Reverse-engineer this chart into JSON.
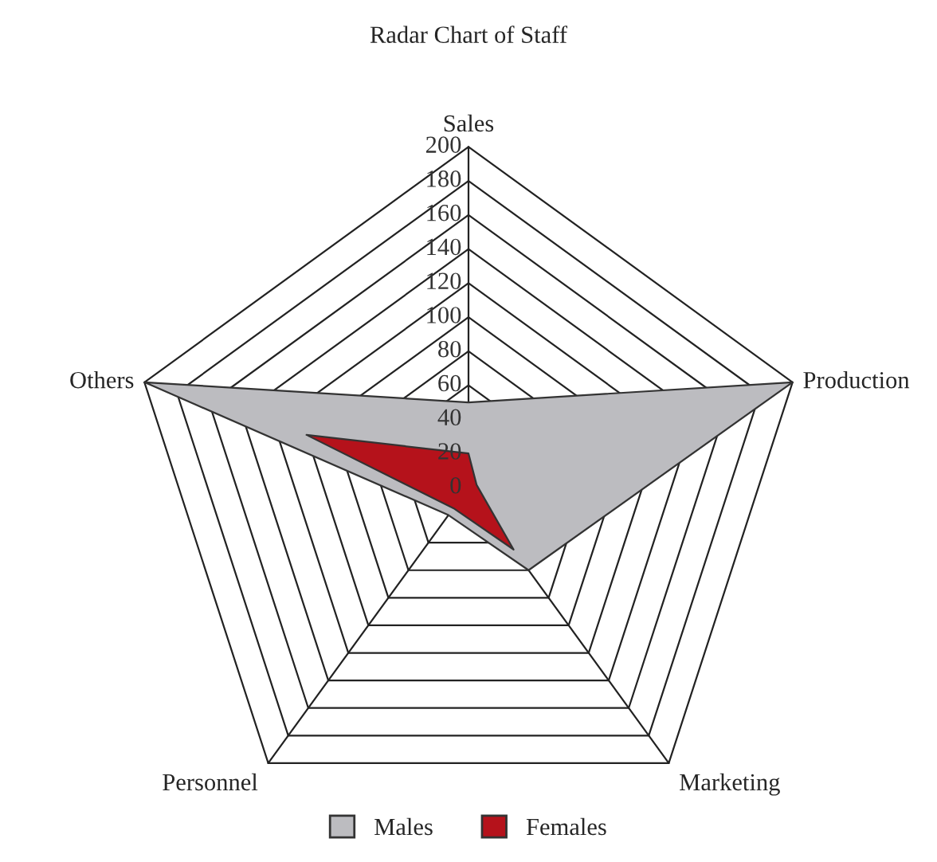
{
  "chart_data": {
    "type": "radar",
    "title": "Radar Chart of Staff",
    "categories": [
      "Sales",
      "Production",
      "Marketing",
      "Personnel",
      "Others"
    ],
    "series": [
      {
        "name": "Males",
        "color": "#bcbcc0",
        "values": [
          50,
          200,
          60,
          20,
          200
        ]
      },
      {
        "name": "Females",
        "color": "#b5121b",
        "values": [
          20,
          5,
          45,
          15,
          100
        ]
      }
    ],
    "ylim": [
      0,
      200
    ],
    "yticks": [
      0,
      20,
      40,
      60,
      80,
      100,
      120,
      140,
      160,
      180,
      200
    ],
    "legend": "bottom",
    "grid": true
  }
}
